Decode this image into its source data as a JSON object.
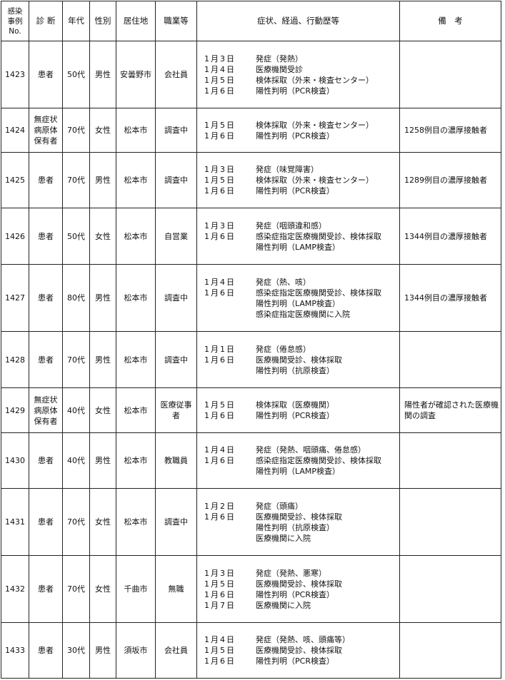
{
  "headers": {
    "no": "感染\n事例\nNo.",
    "diag": "診 断",
    "age": "年代",
    "sex": "性別",
    "res": "居住地",
    "job": "職業等",
    "events": "症状、経過、行動歴等",
    "note": "備　考"
  },
  "rows": [
    {
      "no": "1423",
      "diag": "患者",
      "age": "50代",
      "sex": "男性",
      "res": "安曇野市",
      "job": "会社員",
      "events": [
        {
          "date": "1月3日",
          "text": "発症（発熱）"
        },
        {
          "date": "1月4日",
          "text": "医療機関受診"
        },
        {
          "date": "1月5日",
          "text": "検体採取（外来・検査センター）"
        },
        {
          "date": "1月6日",
          "text": "陽性判明（PCR検査）"
        }
      ],
      "note": ""
    },
    {
      "no": "1424",
      "diag": "無症状病原体保有者",
      "age": "70代",
      "sex": "女性",
      "res": "松本市",
      "job": "調査中",
      "events": [
        {
          "date": "1月5日",
          "text": "検体採取（外来・検査センター）"
        },
        {
          "date": "1月6日",
          "text": "陽性判明（PCR検査）"
        }
      ],
      "note": "1258例目の濃厚接触者"
    },
    {
      "no": "1425",
      "diag": "患者",
      "age": "70代",
      "sex": "男性",
      "res": "松本市",
      "job": "調査中",
      "events": [
        {
          "date": "1月3日",
          "text": "発症（味覚障害）"
        },
        {
          "date": "1月5日",
          "text": "検体採取（外来・検査センター）"
        },
        {
          "date": "1月6日",
          "text": "陽性判明（PCR検査）"
        }
      ],
      "note": "1289例目の濃厚接触者"
    },
    {
      "no": "1426",
      "diag": "患者",
      "age": "50代",
      "sex": "女性",
      "res": "松本市",
      "job": "自営業",
      "events": [
        {
          "date": "1月3日",
          "text": "発症（咽頭違和感）"
        },
        {
          "date": "1月6日",
          "text": "感染症指定医療機関受診、検体採取"
        },
        {
          "date": "",
          "text": "陽性判明（LAMP検査）"
        }
      ],
      "note": "1344例目の濃厚接触者"
    },
    {
      "no": "1427",
      "diag": "患者",
      "age": "80代",
      "sex": "男性",
      "res": "松本市",
      "job": "調査中",
      "events": [
        {
          "date": "1月4日",
          "text": "発症（熱、咳）"
        },
        {
          "date": "1月6日",
          "text": "感染症指定医療機関受診、検体採取"
        },
        {
          "date": "",
          "text": "陽性判明（LAMP検査）"
        },
        {
          "date": "",
          "text": "感染症指定医療機関に入院"
        }
      ],
      "note": "1344例目の濃厚接触者"
    },
    {
      "no": "1428",
      "diag": "患者",
      "age": "70代",
      "sex": "男性",
      "res": "松本市",
      "job": "調査中",
      "events": [
        {
          "date": "1月1日",
          "text": "発症（倦怠感）"
        },
        {
          "date": "1月6日",
          "text": "医療機関受診、検体採取"
        },
        {
          "date": "",
          "text": "陽性判明（抗原検査）"
        }
      ],
      "note": ""
    },
    {
      "no": "1429",
      "diag": "無症状病原体保有者",
      "age": "40代",
      "sex": "女性",
      "res": "松本市",
      "job": "医療従事者",
      "events": [
        {
          "date": "1月5日",
          "text": "検体採取（医療機関）"
        },
        {
          "date": "1月6日",
          "text": "陽性判明（PCR検査）"
        }
      ],
      "note": "陽性者が確認された医療機関の調査"
    },
    {
      "no": "1430",
      "diag": "患者",
      "age": "40代",
      "sex": "男性",
      "res": "松本市",
      "job": "教職員",
      "events": [
        {
          "date": "1月4日",
          "text": "発症（発熱、咽頭痛、倦怠感）"
        },
        {
          "date": "1月6日",
          "text": "感染症指定医療機関受診、検体採取"
        },
        {
          "date": "",
          "text": "陽性判明（LAMP検査）"
        }
      ],
      "note": ""
    },
    {
      "no": "1431",
      "diag": "患者",
      "age": "70代",
      "sex": "女性",
      "res": "松本市",
      "job": "調査中",
      "events": [
        {
          "date": "1月2日",
          "text": "発症（頭痛）"
        },
        {
          "date": "1月6日",
          "text": "医療機関受診、検体採取"
        },
        {
          "date": "",
          "text": "陽性判明（抗原検査）"
        },
        {
          "date": "",
          "text": "医療機関に入院"
        }
      ],
      "note": ""
    },
    {
      "no": "1432",
      "diag": "患者",
      "age": "70代",
      "sex": "女性",
      "res": "千曲市",
      "job": "無職",
      "events": [
        {
          "date": "1月3日",
          "text": "発症（発熱、悪寒）"
        },
        {
          "date": "1月5日",
          "text": "医療機関受診、検体採取"
        },
        {
          "date": "1月6日",
          "text": "陽性判明（PCR検査）"
        },
        {
          "date": "1月7日",
          "text": "医療機関に入院"
        }
      ],
      "note": ""
    },
    {
      "no": "1433",
      "diag": "患者",
      "age": "30代",
      "sex": "男性",
      "res": "須坂市",
      "job": "会社員",
      "events": [
        {
          "date": "1月4日",
          "text": "発症（発熱、咳、頭痛等）"
        },
        {
          "date": "1月5日",
          "text": "医療機関受診、検体採取"
        },
        {
          "date": "1月6日",
          "text": "陽性判明（PCR検査）"
        }
      ],
      "note": ""
    }
  ]
}
